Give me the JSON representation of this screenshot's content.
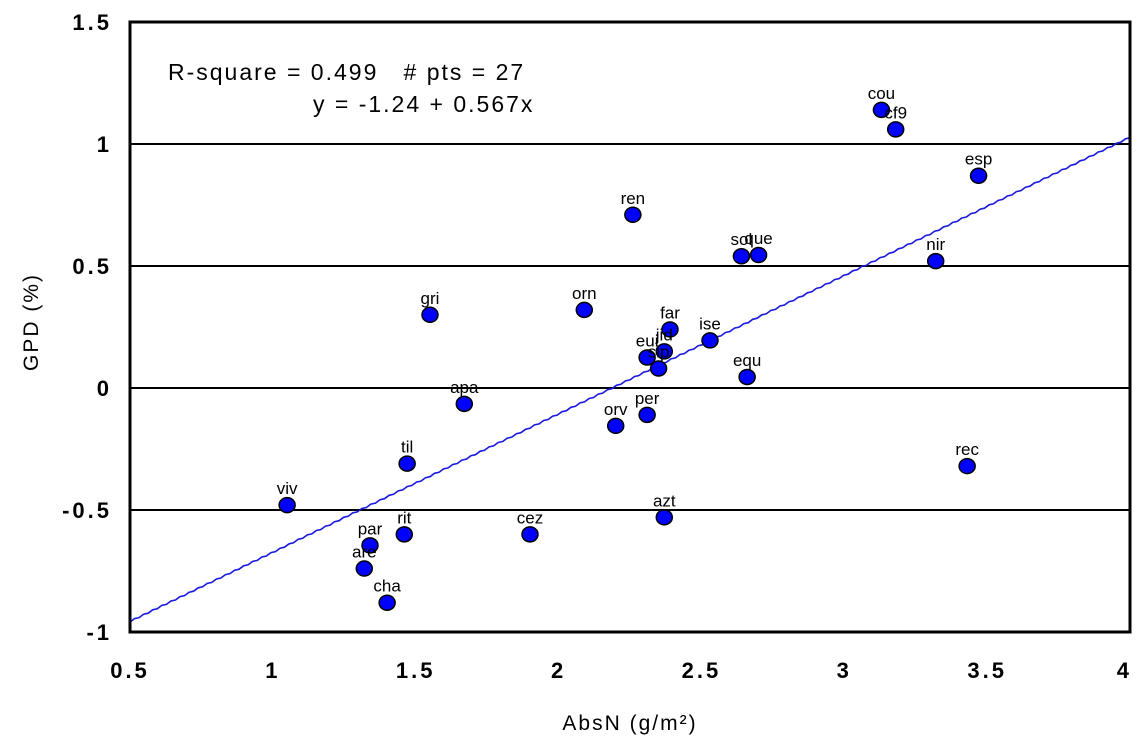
{
  "chart_data": {
    "type": "scatter",
    "xlabel": "AbsN (g/m²)",
    "ylabel": "GPD (%)",
    "xlim": [
      0.5,
      4
    ],
    "ylim": [
      -1,
      1.5
    ],
    "x_ticks": [
      {
        "value": 0.5,
        "label": "0.5"
      },
      {
        "value": 1,
        "label": "1"
      },
      {
        "value": 1.5,
        "label": "1.5"
      },
      {
        "value": 2,
        "label": "2"
      },
      {
        "value": 2.5,
        "label": "2.5"
      },
      {
        "value": 3,
        "label": "3"
      },
      {
        "value": 3.5,
        "label": "3.5"
      },
      {
        "value": 4,
        "label": "4"
      }
    ],
    "y_ticks": [
      {
        "value": 1.5,
        "label": "1.5"
      },
      {
        "value": 1,
        "label": "1"
      },
      {
        "value": 0.5,
        "label": "0.5"
      },
      {
        "value": 0,
        "label": "0"
      },
      {
        "value": -0.5,
        "label": "-0.5"
      },
      {
        "value": -1,
        "label": "-1"
      }
    ],
    "gridlines_y": [
      1,
      0.5,
      0,
      -0.5
    ],
    "annotations": {
      "stats": "R-square = 0.499   # pts = 27",
      "equation": "y = -1.24 + 0.567x"
    },
    "regression": {
      "intercept": -1.24,
      "slope": 0.567
    },
    "marker_color": "#0000ff",
    "line_color": "#1a1adf",
    "points": [
      {
        "label": "cou",
        "x": 3.13,
        "y": 1.14
      },
      {
        "label": "cf9",
        "x": 3.18,
        "y": 1.06
      },
      {
        "label": "esp",
        "x": 3.47,
        "y": 0.87
      },
      {
        "label": "ren",
        "x": 2.26,
        "y": 0.71
      },
      {
        "label": "sol",
        "x": 2.64,
        "y": 0.54
      },
      {
        "label": "que",
        "x": 2.7,
        "y": 0.545
      },
      {
        "label": "nir",
        "x": 3.32,
        "y": 0.52
      },
      {
        "label": "gri",
        "x": 1.55,
        "y": 0.3
      },
      {
        "label": "orn",
        "x": 2.09,
        "y": 0.32
      },
      {
        "label": "far",
        "x": 2.39,
        "y": 0.24
      },
      {
        "label": "ise",
        "x": 2.53,
        "y": 0.195
      },
      {
        "label": "jid",
        "x": 2.37,
        "y": 0.15
      },
      {
        "label": "eui",
        "x": 2.31,
        "y": 0.125
      },
      {
        "label": "sip",
        "x": 2.35,
        "y": 0.08
      },
      {
        "label": "equ",
        "x": 2.66,
        "y": 0.045
      },
      {
        "label": "apa",
        "x": 1.67,
        "y": -0.065
      },
      {
        "label": "per",
        "x": 2.31,
        "y": -0.11
      },
      {
        "label": "orv",
        "x": 2.2,
        "y": -0.155
      },
      {
        "label": "til",
        "x": 1.47,
        "y": -0.31
      },
      {
        "label": "rec",
        "x": 3.43,
        "y": -0.32
      },
      {
        "label": "viv",
        "x": 1.05,
        "y": -0.48
      },
      {
        "label": "azt",
        "x": 2.37,
        "y": -0.53
      },
      {
        "label": "rit",
        "x": 1.46,
        "y": -0.6
      },
      {
        "label": "cez",
        "x": 1.9,
        "y": -0.6
      },
      {
        "label": "par",
        "x": 1.34,
        "y": -0.645
      },
      {
        "label": "are",
        "x": 1.32,
        "y": -0.74
      },
      {
        "label": "cha",
        "x": 1.4,
        "y": -0.88
      }
    ]
  }
}
